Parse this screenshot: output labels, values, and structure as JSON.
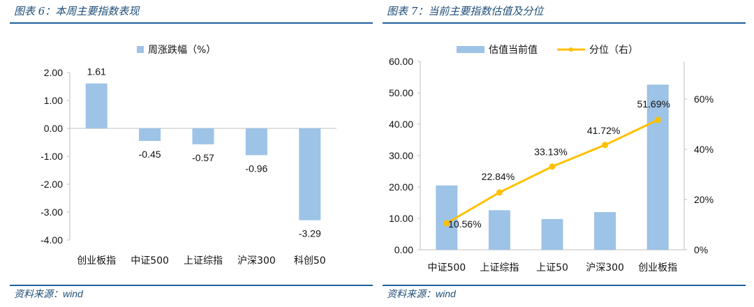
{
  "left": {
    "title": "图表 6：本周主要指数表现",
    "source_prefix": "资料来源：",
    "source_suffix": "wind"
  },
  "right": {
    "title": "图表 7：当前主要指数估值及分位",
    "source_prefix": "资料来源：",
    "source_suffix": "wind"
  },
  "colors": {
    "bar": "#9dc3e6",
    "line": "#ffc000",
    "rule": "#1f5f9f",
    "title": "#1f4e79"
  },
  "chart_data": [
    {
      "type": "bar",
      "title": "",
      "categories": [
        "创业板指",
        "中证500",
        "上证综指",
        "沪深300",
        "科创50"
      ],
      "series": [
        {
          "name": "周涨跌幅（%）",
          "values": [
            1.61,
            -0.45,
            -0.57,
            -0.96,
            -3.29
          ]
        }
      ],
      "data_labels": [
        "1.61",
        "-0.45",
        "-0.57",
        "-0.96",
        "-3.29"
      ],
      "ylim": [
        -4,
        2
      ],
      "yticks": [
        "2.00",
        "1.00",
        "0.00",
        "-1.00",
        "-2.00",
        "-3.00",
        "-4.00"
      ],
      "legend": "top-center",
      "grid": false
    },
    {
      "type": "bar+line",
      "title": "",
      "categories": [
        "中证500",
        "上证综指",
        "上证50",
        "沪深300",
        "创业板指"
      ],
      "series": [
        {
          "name": "估值当前值",
          "type": "bar",
          "axis": "left",
          "values": [
            20.5,
            12.6,
            9.8,
            12.0,
            52.6
          ]
        },
        {
          "name": "分位（右）",
          "type": "line",
          "axis": "right",
          "values": [
            10.56,
            22.84,
            33.13,
            41.72,
            51.69
          ],
          "labels": [
            "10.56%",
            "22.84%",
            "33.13%",
            "41.72%",
            "51.69%"
          ]
        }
      ],
      "ylim_left": [
        0,
        60
      ],
      "yticks_left": [
        "60.00",
        "50.00",
        "40.00",
        "30.00",
        "20.00",
        "10.00",
        "0.00"
      ],
      "ylim_right": [
        0,
        75
      ],
      "yticks_right": [
        "60%",
        "40%",
        "20%",
        "0%"
      ],
      "legend": "top-center",
      "grid": false
    }
  ]
}
